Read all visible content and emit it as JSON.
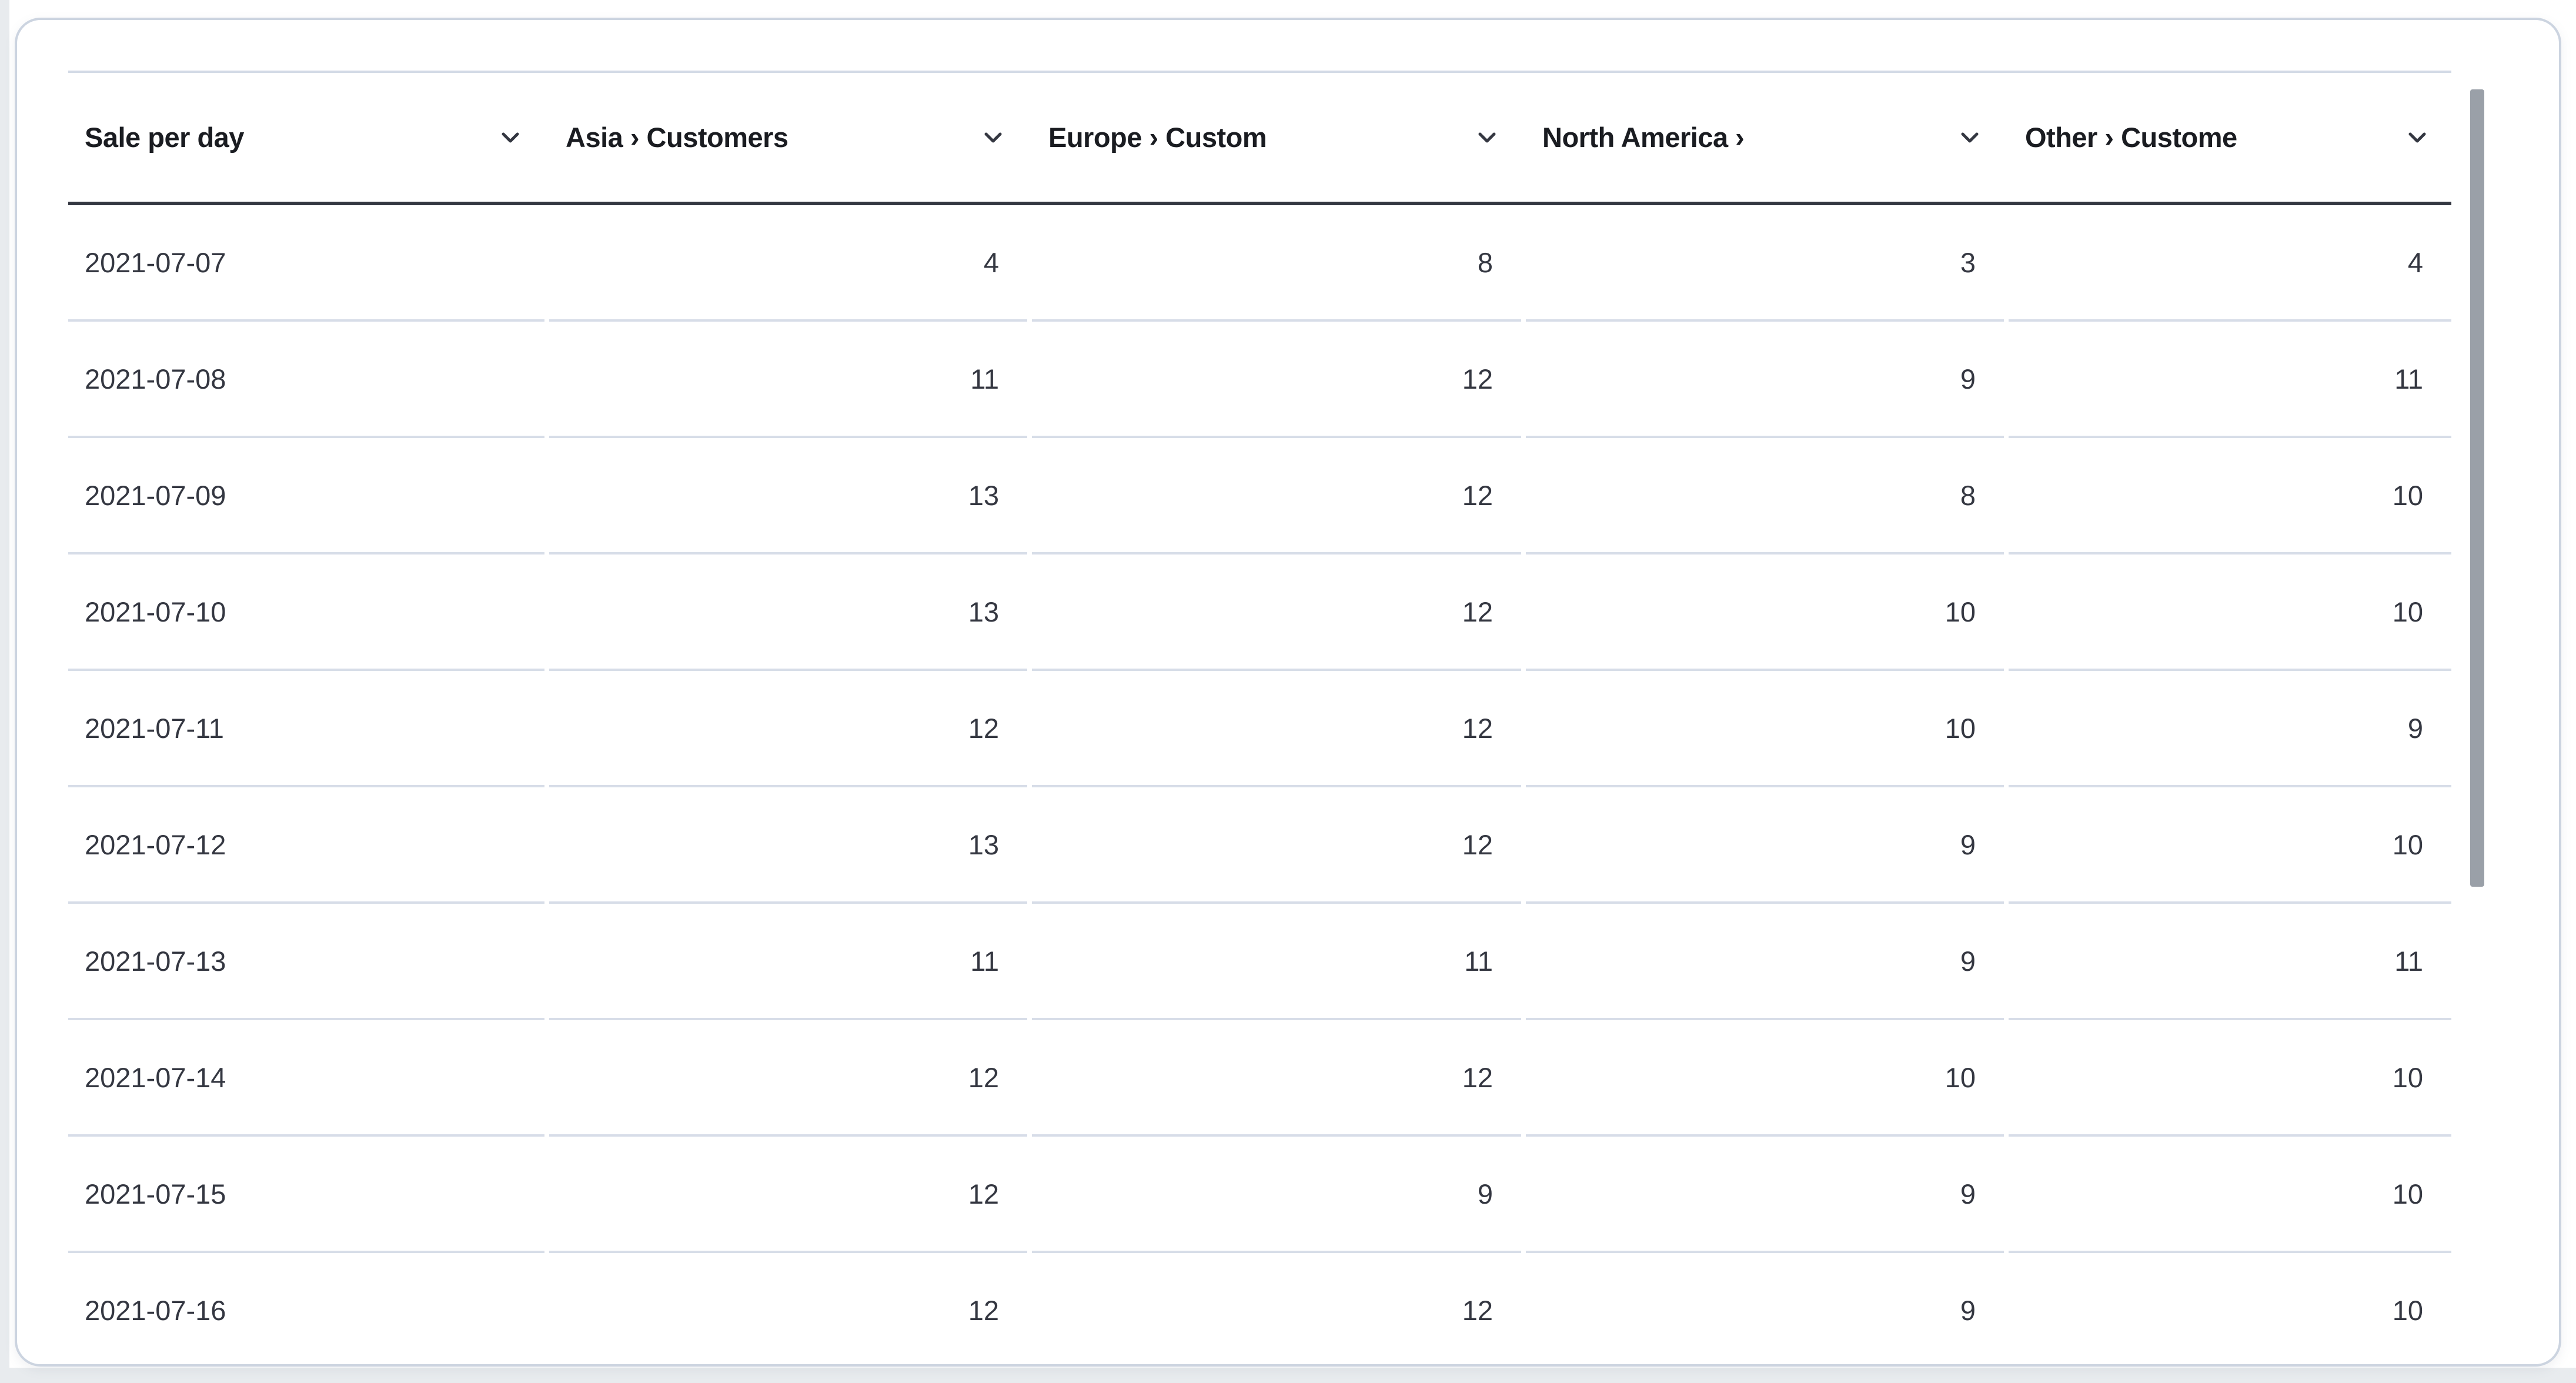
{
  "table": {
    "columns": [
      {
        "label": "Sale per day"
      },
      {
        "label": "Asia › Customers"
      },
      {
        "label": "Europe › Custom"
      },
      {
        "label": "North America ›"
      },
      {
        "label": "Other › Custome"
      }
    ],
    "rows": [
      {
        "date": "2021-07-07",
        "values": [
          "4",
          "8",
          "3",
          "4"
        ]
      },
      {
        "date": "2021-07-08",
        "values": [
          "11",
          "12",
          "9",
          "11"
        ]
      },
      {
        "date": "2021-07-09",
        "values": [
          "13",
          "12",
          "8",
          "10"
        ]
      },
      {
        "date": "2021-07-10",
        "values": [
          "13",
          "12",
          "10",
          "10"
        ]
      },
      {
        "date": "2021-07-11",
        "values": [
          "12",
          "12",
          "10",
          "9"
        ]
      },
      {
        "date": "2021-07-12",
        "values": [
          "13",
          "12",
          "9",
          "10"
        ]
      },
      {
        "date": "2021-07-13",
        "values": [
          "11",
          "11",
          "9",
          "11"
        ]
      },
      {
        "date": "2021-07-14",
        "values": [
          "12",
          "12",
          "10",
          "10"
        ]
      },
      {
        "date": "2021-07-15",
        "values": [
          "12",
          "9",
          "9",
          "10"
        ]
      },
      {
        "date": "2021-07-16",
        "values": [
          "12",
          "12",
          "9",
          "10"
        ]
      }
    ]
  },
  "icons": {
    "header_chevron": "chevron-down"
  },
  "colors": {
    "header_text": "#1a1c21",
    "cell_text": "#343741",
    "header_underline": "#343741",
    "row_divider": "#d7dde8",
    "header_top_line": "#d3dae6",
    "card_border": "#ccd4e0",
    "card_background": "#ffffff",
    "page_margin": "#e8ebee",
    "scrollbar_thumb": "#9aa0a8"
  }
}
